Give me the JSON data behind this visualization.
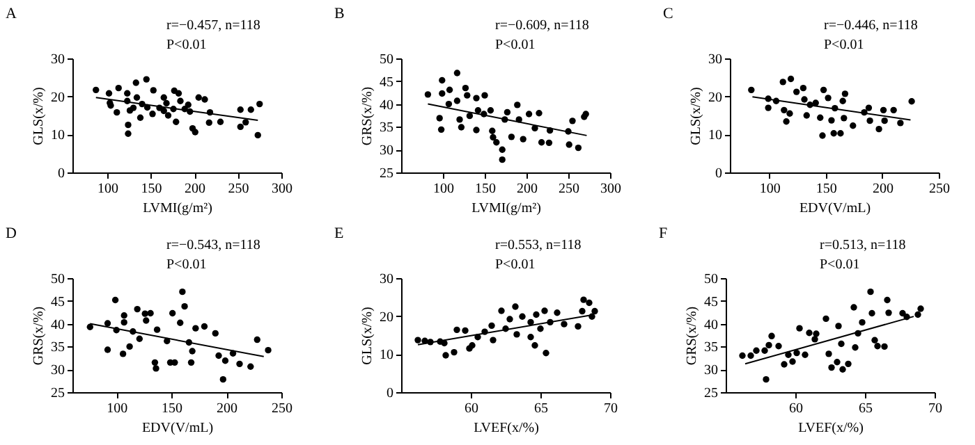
{
  "chart_data": [
    {
      "type": "scatter",
      "title": "A",
      "xlabel": "LVMI(g/m²)",
      "ylabel": "GLS(x/%)",
      "xlim": [
        60,
        300
      ],
      "xticks": [
        100,
        150,
        200,
        250,
        300
      ],
      "ylim": [
        0,
        30
      ],
      "yticks": [
        0,
        10,
        20,
        30
      ],
      "grid": false,
      "annotations": [
        "r=−0.457, n=118",
        "P<0.01"
      ],
      "series": [
        {
          "marker": "circle",
          "color": "#000000",
          "x": [
            87,
            102,
            103,
            104,
            113,
            111,
            123,
            123,
            124,
            124,
            126,
            133,
            134,
            138,
            145,
            146,
            153,
            152,
            165,
            165,
            168,
            176,
            177,
            179,
            182,
            184,
            189,
            193,
            198,
            201,
            205,
            212,
            218,
            217,
            230,
            253,
            253,
            259,
            265,
            273,
            275,
            140,
            160,
            170,
            130,
            195
          ],
          "values": [
            21.7,
            20.8,
            18.3,
            17.6,
            22.2,
            15.8,
            20.8,
            18.8,
            10.2,
            12.5,
            16.3,
            23.6,
            19.7,
            14.4,
            24.5,
            17.1,
            21.6,
            15.4,
            19.7,
            16.2,
            18.2,
            16.7,
            21.5,
            13.3,
            20.8,
            18.8,
            16.7,
            17.8,
            11.6,
            10.6,
            19.7,
            19.2,
            15.8,
            13.1,
            13.3,
            16.5,
            12,
            13.2,
            16.5,
            9.8,
            18.0,
            18,
            17,
            15,
            17,
            16
          ]
        },
        {
          "type": "line",
          "color": "#000000",
          "x": [
            87,
            273
          ],
          "values": [
            19.7,
            13.7
          ]
        }
      ]
    },
    {
      "type": "scatter",
      "title": "B",
      "xlabel": "LVMI(g/m²)",
      "ylabel": "GRS(x/%)",
      "xlim": [
        50,
        300
      ],
      "xticks": [
        100,
        150,
        200,
        250,
        300
      ],
      "ylim": [
        25,
        50
      ],
      "yticks": [
        25,
        30,
        35,
        40,
        45,
        50
      ],
      "grid": false,
      "annotations": [
        "r=−0.609, n=118",
        "P<0.01"
      ],
      "series": [
        {
          "marker": "circle",
          "color": "#000000",
          "x": [
            82,
            96,
            98,
            99,
            99,
            108,
            107,
            117,
            117,
            120,
            122,
            127,
            129,
            132,
            140,
            140,
            142,
            150,
            149,
            157,
            160,
            164,
            159,
            171,
            171,
            174,
            177,
            182,
            189,
            191,
            196,
            203,
            210,
            215,
            218,
            227,
            228,
            250,
            251,
            255,
            262,
            269,
            271
          ],
          "values": [
            42.1,
            36.9,
            34.4,
            45.2,
            42.3,
            43.1,
            40,
            46.8,
            40.7,
            36.6,
            34.9,
            43.5,
            41.9,
            37.4,
            41.3,
            34.3,
            38.6,
            41.9,
            37.8,
            38.6,
            32.7,
            31.6,
            34.1,
            30.0,
            27.8,
            36.6,
            38.2,
            32.8,
            39.8,
            36.6,
            32.3,
            37.8,
            34.7,
            38,
            31.6,
            31.5,
            34.2,
            34.0,
            31.1,
            36.3,
            30.4,
            37.2,
            37.8
          ]
        },
        {
          "type": "line",
          "color": "#000000",
          "x": [
            82,
            272
          ],
          "values": [
            40,
            33.1
          ]
        }
      ]
    },
    {
      "type": "scatter",
      "title": "C",
      "xlabel": "EDV(V/mL)",
      "ylabel": "GLS(x/%)",
      "xlim": [
        65,
        250
      ],
      "xticks": [
        100,
        150,
        200,
        250
      ],
      "ylim": [
        0,
        30
      ],
      "yticks": [
        0,
        10,
        20,
        30
      ],
      "grid": false,
      "annotations": [
        "r=−0.446, n=118",
        "P<0.01"
      ],
      "series": [
        {
          "marker": "circle",
          "color": "#000000",
          "x": [
            84,
            99,
            99,
            106,
            112,
            119,
            115,
            113,
            118,
            124,
            130,
            131,
            133,
            136,
            141,
            145,
            148,
            147,
            152,
            155,
            157,
            158,
            163,
            165,
            167,
            166,
            174,
            184,
            188,
            189,
            197,
            201,
            202,
            210,
            216,
            226
          ],
          "values": [
            21.7,
            19.4,
            17,
            18.8,
            23.8,
            24.6,
            13.4,
            16.4,
            15.5,
            21.2,
            22.2,
            19.2,
            15,
            17.8,
            18.3,
            14.4,
            21.7,
            9.7,
            19.6,
            13.7,
            10.3,
            16.9,
            10.3,
            18.8,
            20.7,
            14.3,
            12.3,
            15.8,
            17,
            13.6,
            11.4,
            16.4,
            13.6,
            16.4,
            13,
            18.7
          ]
        },
        {
          "type": "line",
          "color": "#000000",
          "x": [
            85,
            225
          ],
          "values": [
            19.9,
            13.8
          ]
        }
      ]
    },
    {
      "type": "scatter",
      "title": "D",
      "xlabel": "EDV(V/mL)",
      "ylabel": "GRS(x/%)",
      "xlim": [
        60,
        250
      ],
      "xticks": [
        100,
        150,
        200,
        250
      ],
      "ylim": [
        25,
        50
      ],
      "yticks": [
        25,
        30,
        35,
        40,
        45,
        50
      ],
      "grid": false,
      "annotations": [
        "r=−0.543, n=118",
        "P<0.01"
      ],
      "series": [
        {
          "marker": "circle",
          "color": "#000000",
          "x": [
            76,
            92,
            92,
            99,
            100,
            106,
            107,
            107,
            112,
            115,
            119,
            121,
            126,
            127,
            131,
            135,
            136,
            137,
            146,
            149,
            151,
            153,
            158,
            160,
            162,
            166,
            168,
            172,
            169,
            180,
            190,
            193,
            197,
            199,
            206,
            212,
            222,
            228,
            238
          ],
          "values": [
            39.3,
            40.1,
            34.3,
            45.2,
            38.6,
            33.4,
            41.8,
            40.3,
            35,
            38.3,
            43.2,
            36.7,
            42.2,
            40.7,
            42.3,
            31.5,
            30.2,
            38.7,
            36.2,
            31.5,
            42.3,
            31.5,
            40.2,
            47,
            43.8,
            35.9,
            31.5,
            39.0,
            34,
            39.4,
            37.9,
            33,
            27.8,
            31.9,
            33.5,
            31.2,
            30.6,
            36.5,
            34.2
          ]
        },
        {
          "type": "line",
          "color": "#000000",
          "x": [
            76,
            234
          ],
          "values": [
            40.0,
            32.8
          ]
        }
      ]
    },
    {
      "type": "scatter",
      "title": "E",
      "xlabel": "LVEF(x/%)",
      "ylabel": "GLS(x/%)",
      "xlim": [
        55,
        70
      ],
      "xticks": [
        60,
        65,
        70
      ],
      "ylim": [
        0,
        30
      ],
      "yticks": [
        0,
        10,
        20,
        30
      ],
      "grid": false,
      "annotations": [
        "r=0.553, n=118",
        "P<0.01"
      ],
      "series": [
        {
          "marker": "circle",
          "color": "#000000",
          "x": [
            56.2,
            56.7,
            57.1,
            57.8,
            58.1,
            58.2,
            58.8,
            59.0,
            59.6,
            59.9,
            60.1,
            60.5,
            61.0,
            61.5,
            61.6,
            62.2,
            62.5,
            62.8,
            63.2,
            63.3,
            63.7,
            64.3,
            64.3,
            64.6,
            64.7,
            65,
            65.3,
            65.4,
            65.7,
            66.2,
            66.7,
            67.7,
            68.0,
            68.1,
            68.5,
            68.7,
            68.9
          ],
          "values": [
            13.7,
            13.5,
            13.2,
            13.3,
            12.9,
            9.7,
            10.5,
            16.4,
            16.2,
            11.5,
            12.3,
            14.5,
            15.9,
            17.5,
            13.7,
            21.4,
            16.7,
            19.2,
            22.5,
            15.2,
            19.9,
            18.4,
            14.5,
            12.3,
            20.4,
            16.7,
            21.4,
            10.3,
            18.4,
            20.9,
            17.9,
            17.3,
            21.3,
            24.3,
            23.5,
            19.9,
            21.3
          ]
        },
        {
          "type": "line",
          "color": "#000000",
          "x": [
            56.2,
            68.7
          ],
          "values": [
            12.5,
            20.3
          ]
        }
      ]
    },
    {
      "type": "scatter",
      "title": "F",
      "xlabel": "LVEF(x/%)",
      "ylabel": "GRS(x/%)",
      "xlim": [
        55,
        70
      ],
      "xticks": [
        60,
        65,
        70
      ],
      "ylim": [
        25,
        50
      ],
      "yticks": [
        25,
        30,
        35,
        40,
        45,
        50
      ],
      "grid": false,
      "annotations": [
        "r=0.513, n=118",
        "P<0.01"
      ],
      "series": [
        {
          "marker": "circle",
          "color": "#000000",
          "x": [
            56.2,
            56.8,
            57.2,
            57.8,
            57.9,
            58.1,
            58.3,
            58.8,
            59.2,
            59.5,
            59.8,
            60.1,
            60.3,
            60.7,
            61.0,
            61.4,
            61.5,
            62.2,
            62.4,
            62.6,
            63.0,
            63.1,
            63.3,
            63.4,
            63.8,
            64.2,
            64.3,
            64.5,
            64.8,
            65.4,
            65.5,
            65.7,
            65.9,
            66.4,
            66.6,
            66.7,
            67.7,
            68.0,
            68.8,
            69.0
          ],
          "values": [
            33.0,
            33.0,
            34.1,
            34.1,
            27.8,
            35.3,
            37.3,
            35.1,
            31.1,
            33.2,
            31.7,
            33.6,
            39.0,
            33.2,
            38.0,
            36.6,
            37.8,
            41.1,
            33.4,
            30.4,
            31.6,
            39.5,
            35.6,
            30.0,
            31.2,
            43.6,
            34.8,
            37.9,
            40.3,
            47.0,
            42.3,
            36.4,
            35.1,
            35,
            45.2,
            42.4,
            42.3,
            41.5,
            42.0,
            43.3
          ]
        },
        {
          "type": "line",
          "color": "#000000",
          "x": [
            56.4,
            68.5
          ],
          "values": [
            31.2,
            41.6
          ]
        }
      ]
    }
  ]
}
